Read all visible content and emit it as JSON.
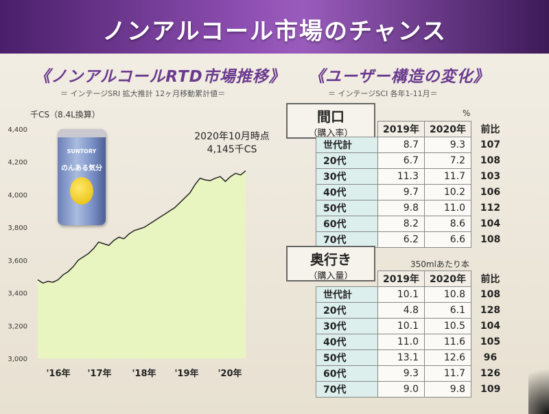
{
  "slide": {
    "title": "ノンアルコール市場のチャンス"
  },
  "left": {
    "title": "《ノンアルコールRTD市場推移》",
    "subtitle": "＝ インテージSRI 拡大推計 12ヶ月移動累計値＝",
    "unit_label": "千CS（8.4L換算）",
    "annotation_line1": "2020年10月時点",
    "annotation_line2": "4,145千CS",
    "can_text": "のんある気分",
    "can_brand": "SUNTORY"
  },
  "chart_data": {
    "type": "area",
    "x_tick_labels": [
      "'16年",
      "'17年",
      "'18年",
      "'19年",
      "'20年"
    ],
    "y_tick_labels": [
      "3,000",
      "3,200",
      "3,400",
      "3,600",
      "3,800",
      "4,000",
      "4,200",
      "4,400"
    ],
    "ylim": [
      3000,
      4400
    ],
    "grid": false,
    "last_value": 4145,
    "values": [
      3480,
      3460,
      3470,
      3465,
      3480,
      3510,
      3530,
      3560,
      3600,
      3620,
      3640,
      3670,
      3710,
      3700,
      3690,
      3720,
      3740,
      3730,
      3760,
      3780,
      3790,
      3800,
      3820,
      3840,
      3860,
      3880,
      3900,
      3920,
      3950,
      3980,
      4010,
      4060,
      4100,
      4090,
      4085,
      4100,
      4110,
      4080,
      4110,
      4130,
      4120,
      4145
    ],
    "color": "#e9f5c0",
    "line_color": "#222222"
  },
  "right": {
    "title": "《ユーザー構造の変化》",
    "subtitle": "＝ インテージSCI 各年1-11月＝",
    "table1": {
      "label_main": "間口",
      "label_sub": "（購入率）",
      "unit": "%",
      "headers": [
        "2019年",
        "2020年",
        "前比"
      ],
      "rows": [
        {
          "cat": "世代計",
          "v2019": "8.7",
          "v2020": "9.3",
          "ratio": "107"
        },
        {
          "cat": "20代",
          "v2019": "6.7",
          "v2020": "7.2",
          "ratio": "108"
        },
        {
          "cat": "30代",
          "v2019": "11.3",
          "v2020": "11.7",
          "ratio": "103"
        },
        {
          "cat": "40代",
          "v2019": "9.7",
          "v2020": "10.2",
          "ratio": "106"
        },
        {
          "cat": "50代",
          "v2019": "9.8",
          "v2020": "11.0",
          "ratio": "112"
        },
        {
          "cat": "60代",
          "v2019": "8.2",
          "v2020": "8.6",
          "ratio": "104"
        },
        {
          "cat": "70代",
          "v2019": "6.2",
          "v2020": "6.6",
          "ratio": "108"
        }
      ]
    },
    "table2": {
      "label_main": "奥行き",
      "label_sub": "（購入量）",
      "unit": "350mlあたり本",
      "headers": [
        "2019年",
        "2020年",
        "前比"
      ],
      "rows": [
        {
          "cat": "世代計",
          "v2019": "10.1",
          "v2020": "10.8",
          "ratio": "108"
        },
        {
          "cat": "20代",
          "v2019": "4.8",
          "v2020": "6.1",
          "ratio": "128"
        },
        {
          "cat": "30代",
          "v2019": "10.1",
          "v2020": "10.5",
          "ratio": "104"
        },
        {
          "cat": "40代",
          "v2019": "11.0",
          "v2020": "11.6",
          "ratio": "105"
        },
        {
          "cat": "50代",
          "v2019": "13.1",
          "v2020": "12.6",
          "ratio": "96"
        },
        {
          "cat": "60代",
          "v2019": "9.3",
          "v2020": "11.7",
          "ratio": "126"
        },
        {
          "cat": "70代",
          "v2019": "9.0",
          "v2020": "9.8",
          "ratio": "109"
        }
      ]
    }
  }
}
